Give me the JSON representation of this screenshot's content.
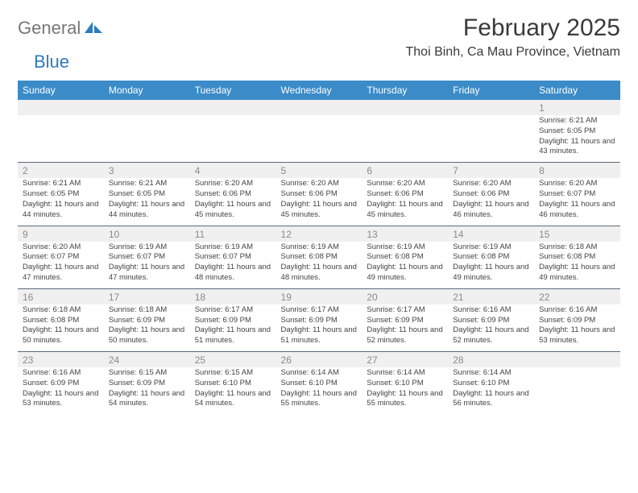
{
  "brand": {
    "part1": "General",
    "part2": "Blue"
  },
  "title": "February 2025",
  "location": "Thoi Binh, Ca Mau Province, Vietnam",
  "day_headers": [
    "Sunday",
    "Monday",
    "Tuesday",
    "Wednesday",
    "Thursday",
    "Friday",
    "Saturday"
  ],
  "header_bg": "#3b8bc9",
  "numrow_bg": "#f0f0f0",
  "border_color": "#5a6b7a",
  "weeks": [
    {
      "nums": [
        "",
        "",
        "",
        "",
        "",
        "",
        "1"
      ],
      "details": [
        "",
        "",
        "",
        "",
        "",
        "",
        "Sunrise: 6:21 AM\nSunset: 6:05 PM\nDaylight: 11 hours and 43 minutes."
      ]
    },
    {
      "nums": [
        "2",
        "3",
        "4",
        "5",
        "6",
        "7",
        "8"
      ],
      "details": [
        "Sunrise: 6:21 AM\nSunset: 6:05 PM\nDaylight: 11 hours and 44 minutes.",
        "Sunrise: 6:21 AM\nSunset: 6:05 PM\nDaylight: 11 hours and 44 minutes.",
        "Sunrise: 6:20 AM\nSunset: 6:06 PM\nDaylight: 11 hours and 45 minutes.",
        "Sunrise: 6:20 AM\nSunset: 6:06 PM\nDaylight: 11 hours and 45 minutes.",
        "Sunrise: 6:20 AM\nSunset: 6:06 PM\nDaylight: 11 hours and 45 minutes.",
        "Sunrise: 6:20 AM\nSunset: 6:06 PM\nDaylight: 11 hours and 46 minutes.",
        "Sunrise: 6:20 AM\nSunset: 6:07 PM\nDaylight: 11 hours and 46 minutes."
      ]
    },
    {
      "nums": [
        "9",
        "10",
        "11",
        "12",
        "13",
        "14",
        "15"
      ],
      "details": [
        "Sunrise: 6:20 AM\nSunset: 6:07 PM\nDaylight: 11 hours and 47 minutes.",
        "Sunrise: 6:19 AM\nSunset: 6:07 PM\nDaylight: 11 hours and 47 minutes.",
        "Sunrise: 6:19 AM\nSunset: 6:07 PM\nDaylight: 11 hours and 48 minutes.",
        "Sunrise: 6:19 AM\nSunset: 6:08 PM\nDaylight: 11 hours and 48 minutes.",
        "Sunrise: 6:19 AM\nSunset: 6:08 PM\nDaylight: 11 hours and 49 minutes.",
        "Sunrise: 6:19 AM\nSunset: 6:08 PM\nDaylight: 11 hours and 49 minutes.",
        "Sunrise: 6:18 AM\nSunset: 6:08 PM\nDaylight: 11 hours and 49 minutes."
      ]
    },
    {
      "nums": [
        "16",
        "17",
        "18",
        "19",
        "20",
        "21",
        "22"
      ],
      "details": [
        "Sunrise: 6:18 AM\nSunset: 6:08 PM\nDaylight: 11 hours and 50 minutes.",
        "Sunrise: 6:18 AM\nSunset: 6:09 PM\nDaylight: 11 hours and 50 minutes.",
        "Sunrise: 6:17 AM\nSunset: 6:09 PM\nDaylight: 11 hours and 51 minutes.",
        "Sunrise: 6:17 AM\nSunset: 6:09 PM\nDaylight: 11 hours and 51 minutes.",
        "Sunrise: 6:17 AM\nSunset: 6:09 PM\nDaylight: 11 hours and 52 minutes.",
        "Sunrise: 6:16 AM\nSunset: 6:09 PM\nDaylight: 11 hours and 52 minutes.",
        "Sunrise: 6:16 AM\nSunset: 6:09 PM\nDaylight: 11 hours and 53 minutes."
      ]
    },
    {
      "nums": [
        "23",
        "24",
        "25",
        "26",
        "27",
        "28",
        ""
      ],
      "details": [
        "Sunrise: 6:16 AM\nSunset: 6:09 PM\nDaylight: 11 hours and 53 minutes.",
        "Sunrise: 6:15 AM\nSunset: 6:09 PM\nDaylight: 11 hours and 54 minutes.",
        "Sunrise: 6:15 AM\nSunset: 6:10 PM\nDaylight: 11 hours and 54 minutes.",
        "Sunrise: 6:14 AM\nSunset: 6:10 PM\nDaylight: 11 hours and 55 minutes.",
        "Sunrise: 6:14 AM\nSunset: 6:10 PM\nDaylight: 11 hours and 55 minutes.",
        "Sunrise: 6:14 AM\nSunset: 6:10 PM\nDaylight: 11 hours and 56 minutes.",
        ""
      ]
    }
  ]
}
